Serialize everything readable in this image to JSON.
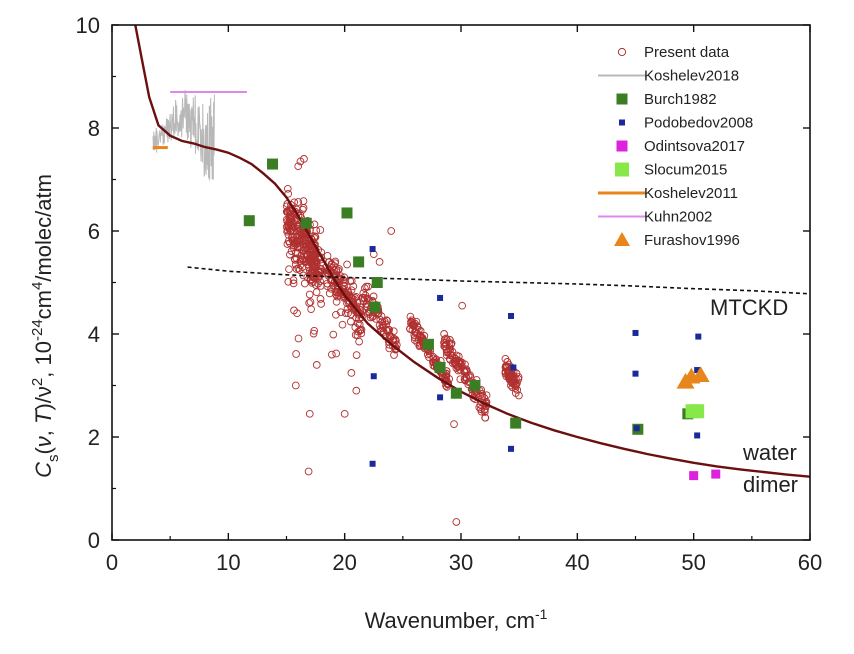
{
  "chart_data": {
    "type": "scatter",
    "title": "",
    "xlabel": "Wavenumber, cm",
    "xlabel_sup": "-1",
    "ylabel_parts": {
      "a": "C",
      "sub": "s",
      "b": "(",
      "nu": "ν",
      "c": ", ",
      "T": "T",
      "d": ")/",
      "nu2": "ν",
      "sup2": "2",
      "e": ", 10",
      "sup_exp": "-24",
      "f": "cm",
      "sup4": "4",
      "g": "/molec/atm"
    },
    "xlim": [
      0,
      60
    ],
    "ylim": [
      0,
      10
    ],
    "xticks": [
      0,
      10,
      20,
      30,
      40,
      50,
      60
    ],
    "yticks": [
      0,
      2,
      4,
      6,
      8,
      10
    ],
    "annotations": {
      "mtckd": "MTCKD",
      "water": "water",
      "dimer": "dimer"
    },
    "legend_position": "top-right",
    "colors": {
      "present": "#b03030",
      "koshelev2018": "#b8b8b8",
      "burch": "#3a7d22",
      "podobedov": "#1a2a9a",
      "odintsova": "#dd22dd",
      "slocum": "#88e84a",
      "koshelev2011": "#e8861c",
      "kuhn": "#dd88ee",
      "furashov": "#e8861c",
      "dimer": "#6b1010",
      "mtckd": "#111111"
    },
    "legend": [
      {
        "key": "present",
        "label": "Present data",
        "marker": "open-circle"
      },
      {
        "key": "koshelev2018",
        "label": "Koshelev2018",
        "marker": "line"
      },
      {
        "key": "burch",
        "label": "Burch1982",
        "marker": "square"
      },
      {
        "key": "podobedov",
        "label": "Podobedov2008",
        "marker": "small-square"
      },
      {
        "key": "odintsova",
        "label": "Odintsova2017",
        "marker": "square"
      },
      {
        "key": "slocum",
        "label": "Slocum2015",
        "marker": "big-square"
      },
      {
        "key": "koshelev2011",
        "label": "Koshelev2011",
        "marker": "thick-line"
      },
      {
        "key": "kuhn",
        "label": "Kuhn2002",
        "marker": "line"
      },
      {
        "key": "furashov",
        "label": "Furashov1996",
        "marker": "triangle"
      }
    ],
    "series": {
      "burch": [
        [
          11.8,
          6.2
        ],
        [
          13.8,
          7.3
        ],
        [
          16.7,
          6.15
        ],
        [
          20.2,
          6.35
        ],
        [
          21.2,
          5.4
        ],
        [
          22.6,
          4.52
        ],
        [
          22.8,
          5.0
        ],
        [
          27.2,
          3.8
        ],
        [
          28.2,
          3.35
        ],
        [
          29.6,
          2.85
        ],
        [
          31.2,
          3.0
        ],
        [
          34.7,
          2.27
        ],
        [
          45.2,
          2.15
        ],
        [
          49.5,
          2.45
        ]
      ],
      "podobedov": [
        [
          22.4,
          5.65
        ],
        [
          22.5,
          3.18
        ],
        [
          22.4,
          1.48
        ],
        [
          28.2,
          4.7
        ],
        [
          28.2,
          2.77
        ],
        [
          34.3,
          4.35
        ],
        [
          34.5,
          3.35
        ],
        [
          34.3,
          1.77
        ],
        [
          45.0,
          4.02
        ],
        [
          45.0,
          3.23
        ],
        [
          45.1,
          2.17
        ],
        [
          50.4,
          3.95
        ],
        [
          50.3,
          3.3
        ],
        [
          50.3,
          2.03
        ]
      ],
      "odintsova": [
        [
          50.0,
          1.25
        ],
        [
          51.9,
          1.28
        ]
      ],
      "slocum": [
        [
          49.9,
          2.5
        ],
        [
          50.3,
          2.5
        ]
      ],
      "furashov": [
        [
          49.3,
          3.07
        ],
        [
          49.8,
          3.17
        ],
        [
          50.6,
          3.2
        ]
      ],
      "koshelev2011": [
        [
          3.5,
          7.62
        ],
        [
          4.8,
          7.62
        ]
      ],
      "kuhn": [
        [
          5.0,
          8.7
        ],
        [
          11.6,
          8.7
        ]
      ],
      "koshelev2018_range": [
        3.5,
        8.8
      ],
      "dimer_curve": [
        [
          2.0,
          10.0
        ],
        [
          2.6,
          9.3
        ],
        [
          3.2,
          8.6
        ],
        [
          4.0,
          8.05
        ],
        [
          5.0,
          7.85
        ],
        [
          6.0,
          7.75
        ],
        [
          7.0,
          7.7
        ],
        [
          8.0,
          7.63
        ],
        [
          9.0,
          7.58
        ],
        [
          10.0,
          7.52
        ],
        [
          11.0,
          7.42
        ],
        [
          12.0,
          7.3
        ],
        [
          13.0,
          7.12
        ],
        [
          14.0,
          6.92
        ],
        [
          15.0,
          6.65
        ],
        [
          16.0,
          6.3
        ],
        [
          17.0,
          5.9
        ],
        [
          18.0,
          5.5
        ],
        [
          19.0,
          5.1
        ],
        [
          20.0,
          4.75
        ],
        [
          22.0,
          4.2
        ],
        [
          24.0,
          3.8
        ],
        [
          26.0,
          3.45
        ],
        [
          28.0,
          3.15
        ],
        [
          30.0,
          2.88
        ],
        [
          32.0,
          2.65
        ],
        [
          34.0,
          2.45
        ],
        [
          36.0,
          2.28
        ],
        [
          38.0,
          2.13
        ],
        [
          40.0,
          2.0
        ],
        [
          42.0,
          1.88
        ],
        [
          44.0,
          1.77
        ],
        [
          46.0,
          1.67
        ],
        [
          48.0,
          1.58
        ],
        [
          50.0,
          1.5
        ],
        [
          52.0,
          1.43
        ],
        [
          54.0,
          1.37
        ],
        [
          56.0,
          1.32
        ],
        [
          58.0,
          1.27
        ],
        [
          60.0,
          1.23
        ]
      ],
      "mtckd_curve": [
        [
          6.5,
          5.3
        ],
        [
          10.0,
          5.22
        ],
        [
          15.0,
          5.15
        ],
        [
          20.0,
          5.1
        ],
        [
          25.0,
          5.07
        ],
        [
          30.0,
          5.03
        ],
        [
          35.0,
          5.0
        ],
        [
          40.0,
          4.97
        ],
        [
          45.0,
          4.93
        ],
        [
          50.0,
          4.88
        ],
        [
          55.0,
          4.84
        ],
        [
          60.0,
          4.78
        ]
      ],
      "present_clusters": [
        {
          "xmin": 15.0,
          "xmax": 18.0,
          "ycenter": 5.75,
          "spread": 0.6,
          "count": 240
        },
        {
          "xmin": 15.0,
          "xmax": 18.0,
          "ycenter": 5.6,
          "spread": 1.6,
          "count": 40
        },
        {
          "xmin": 18.5,
          "xmax": 21.5,
          "ycenter": 4.75,
          "spread": 0.35,
          "count": 120
        },
        {
          "xmin": 18.5,
          "xmax": 21.5,
          "ycenter": 4.6,
          "spread": 1.1,
          "count": 25
        },
        {
          "xmin": 21.5,
          "xmax": 24.5,
          "ycenter": 4.3,
          "spread": 0.22,
          "count": 80
        },
        {
          "xmin": 25.5,
          "xmax": 29.0,
          "ycenter": 3.65,
          "spread": 0.18,
          "count": 100
        },
        {
          "xmin": 28.5,
          "xmax": 32.2,
          "ycenter": 3.2,
          "spread": 0.22,
          "count": 110
        },
        {
          "xmin": 33.8,
          "xmax": 35.0,
          "ycenter": 3.15,
          "spread": 0.22,
          "count": 60
        }
      ],
      "present_outliers": [
        [
          16.2,
          7.35
        ],
        [
          16.5,
          7.4
        ],
        [
          15.8,
          3.0
        ],
        [
          17.0,
          2.45
        ],
        [
          16.9,
          1.33
        ],
        [
          20.0,
          2.45
        ],
        [
          21.0,
          2.9
        ],
        [
          22.5,
          5.55
        ],
        [
          24.0,
          6.0
        ],
        [
          30.1,
          4.55
        ],
        [
          29.6,
          0.35
        ],
        [
          29.4,
          2.25
        ],
        [
          23.0,
          5.4
        ],
        [
          17.6,
          3.4
        ],
        [
          18.9,
          3.6
        ]
      ]
    }
  }
}
